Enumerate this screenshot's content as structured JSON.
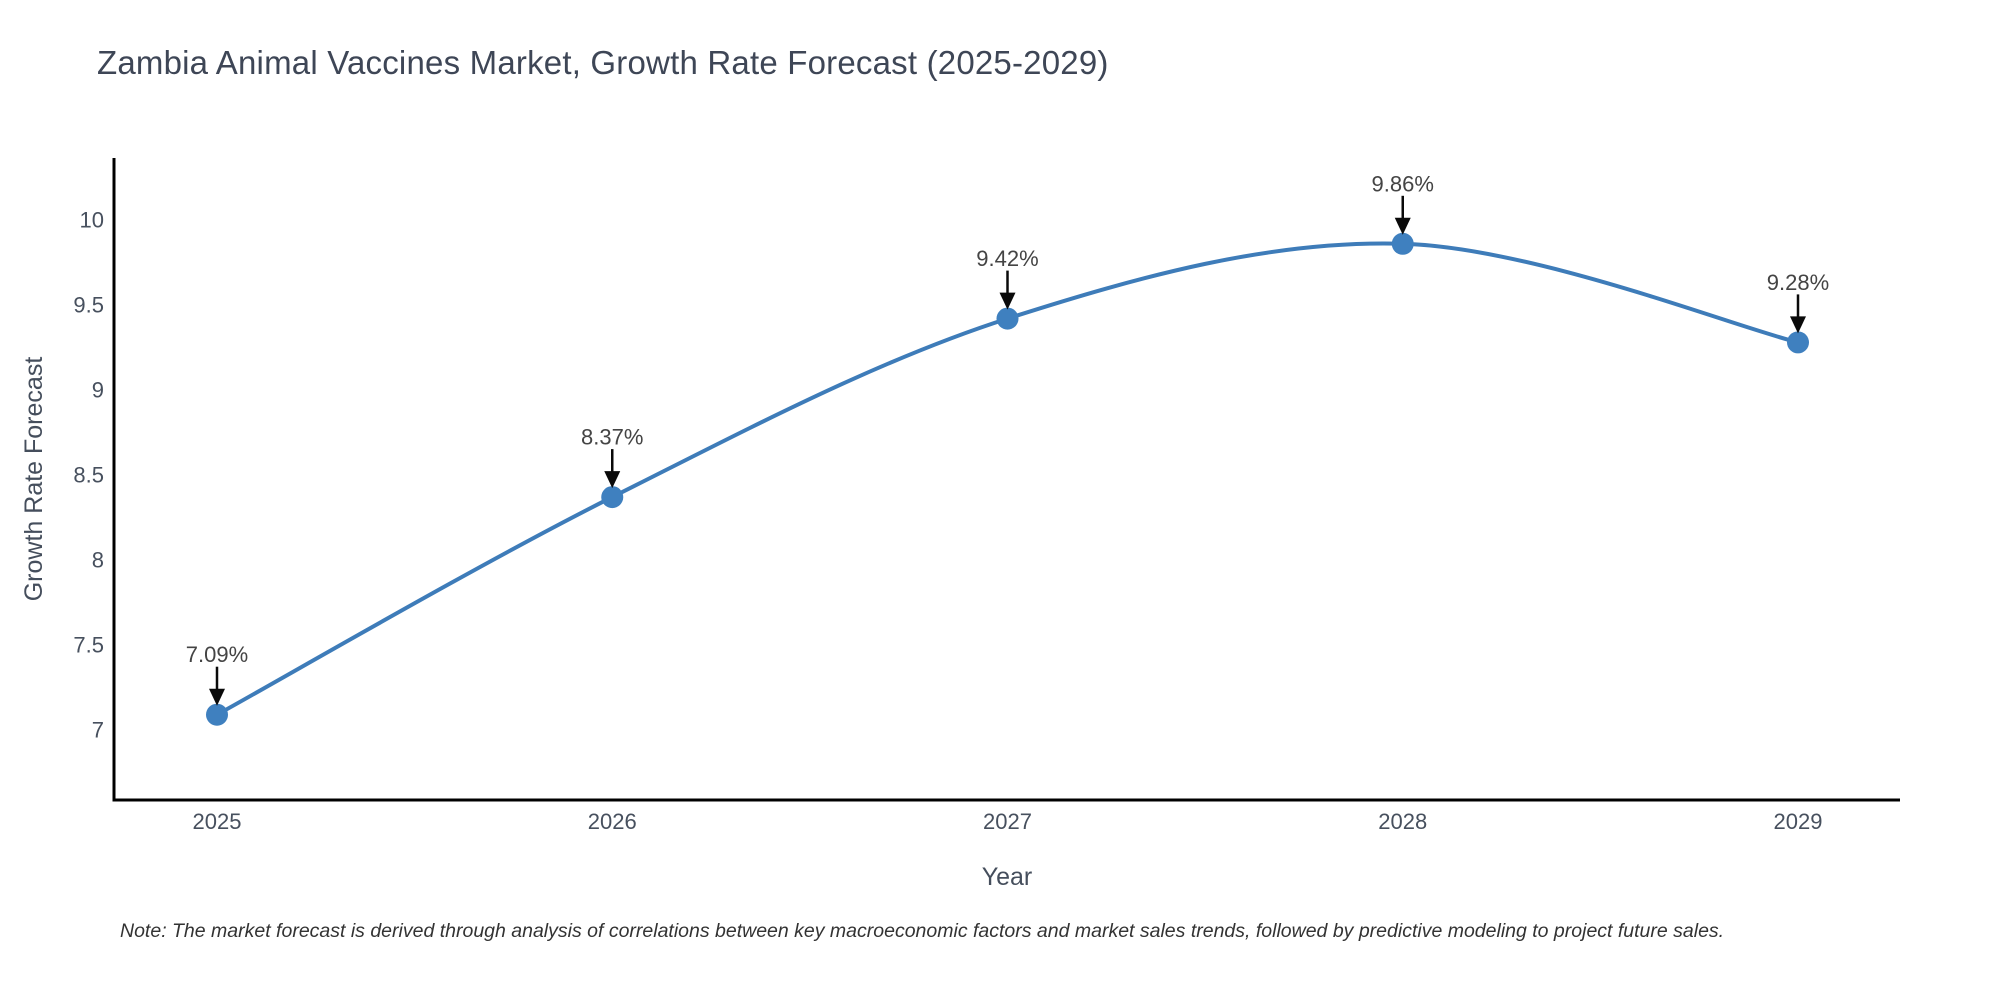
{
  "title": "Zambia Animal Vaccines Market, Growth Rate Forecast (2025-2029)",
  "note": "Note: The market forecast is derived through analysis of correlations between key macroeconomic factors and market sales trends, followed by predictive modeling to project future sales.",
  "colors": {
    "background": "#FFFFFF",
    "line": "#3E7CB9",
    "marker": "#3F80BF",
    "axis_line": "#000000",
    "title_text": "#3E4656",
    "tick_text": "#47505E",
    "axis_title_text": "#454E5C",
    "annotation_text": "#444444",
    "arrow": "#0A0A0A",
    "note_text": "#333333"
  },
  "chart_data": {
    "type": "line",
    "title": "Zambia Animal Vaccines Market, Growth Rate Forecast (2025-2029)",
    "xlabel": "Year",
    "ylabel": "Growth Rate Forecast",
    "x": [
      2025,
      2026,
      2027,
      2028,
      2029
    ],
    "values": [
      7.09,
      8.37,
      9.42,
      9.86,
      9.28
    ],
    "labels": [
      "7.09%",
      "8.37%",
      "9.42%",
      "9.86%",
      "9.28%"
    ],
    "series_name": "Growth Rate Forecast",
    "line_shape": "spline",
    "marker": "circle",
    "annotations": "value labels with black down arrows above each point",
    "xtick_labels": [
      "2025",
      "2026",
      "2027",
      "2028",
      "2029"
    ],
    "ytick_values": [
      7,
      7.5,
      8,
      8.5,
      9,
      9.5,
      10
    ],
    "ytick_labels": [
      "7",
      "7.5",
      "8",
      "8.5",
      "9",
      "9.5",
      "10"
    ],
    "ylim": [
      6.78,
      10.36
    ],
    "xlim": [
      2024.74,
      2029.26
    ],
    "grid": false,
    "legend": false
  }
}
